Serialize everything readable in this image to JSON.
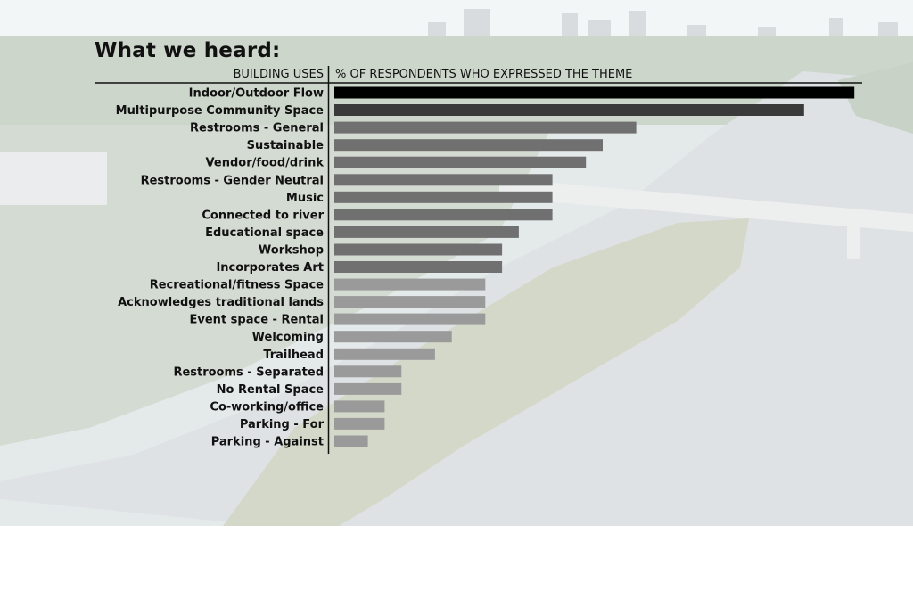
{
  "chart_data": {
    "type": "bar",
    "orientation": "horizontal",
    "title": "What we heard:",
    "category_header": "BUILDING USES",
    "value_header": "% OF RESPONDENTS WHO EXPRESSED THE THEME",
    "categories": [
      "Indoor/Outdoor Flow",
      "Multipurpose Community Space",
      "Restrooms - General",
      "Sustainable",
      "Vendor/food/drink",
      "Restrooms - Gender Neutral",
      "Music",
      "Connected to river",
      "Educational space",
      "Workshop",
      "Incorporates Art",
      "Recreational/fitness Space",
      "Acknowledges traditional lands",
      "Event space - Rental",
      "Welcoming",
      "Trailhead",
      "Restrooms - Separated",
      "No Rental Space",
      "Co-working/office",
      "Parking - For",
      "Parking - Against"
    ],
    "values": [
      31,
      28,
      18,
      16,
      15,
      13,
      13,
      13,
      11,
      10,
      10,
      9,
      9,
      9,
      7,
      6,
      4,
      4,
      3,
      3,
      2
    ],
    "xlim": [
      0,
      32
    ],
    "grid": false,
    "legend": "none",
    "bar_colors": [
      "#000000",
      "#3a3a3a",
      "#707070",
      "#707070",
      "#707070",
      "#707070",
      "#707070",
      "#707070",
      "#707070",
      "#707070",
      "#707070",
      "#9a9a9a",
      "#9a9a9a",
      "#9a9a9a",
      "#9a9a9a",
      "#9a9a9a",
      "#9a9a9a",
      "#9a9a9a",
      "#9a9a9a",
      "#9a9a9a",
      "#9a9a9a"
    ]
  },
  "background": {
    "description_icon": "aerial-river-photo-icon"
  }
}
